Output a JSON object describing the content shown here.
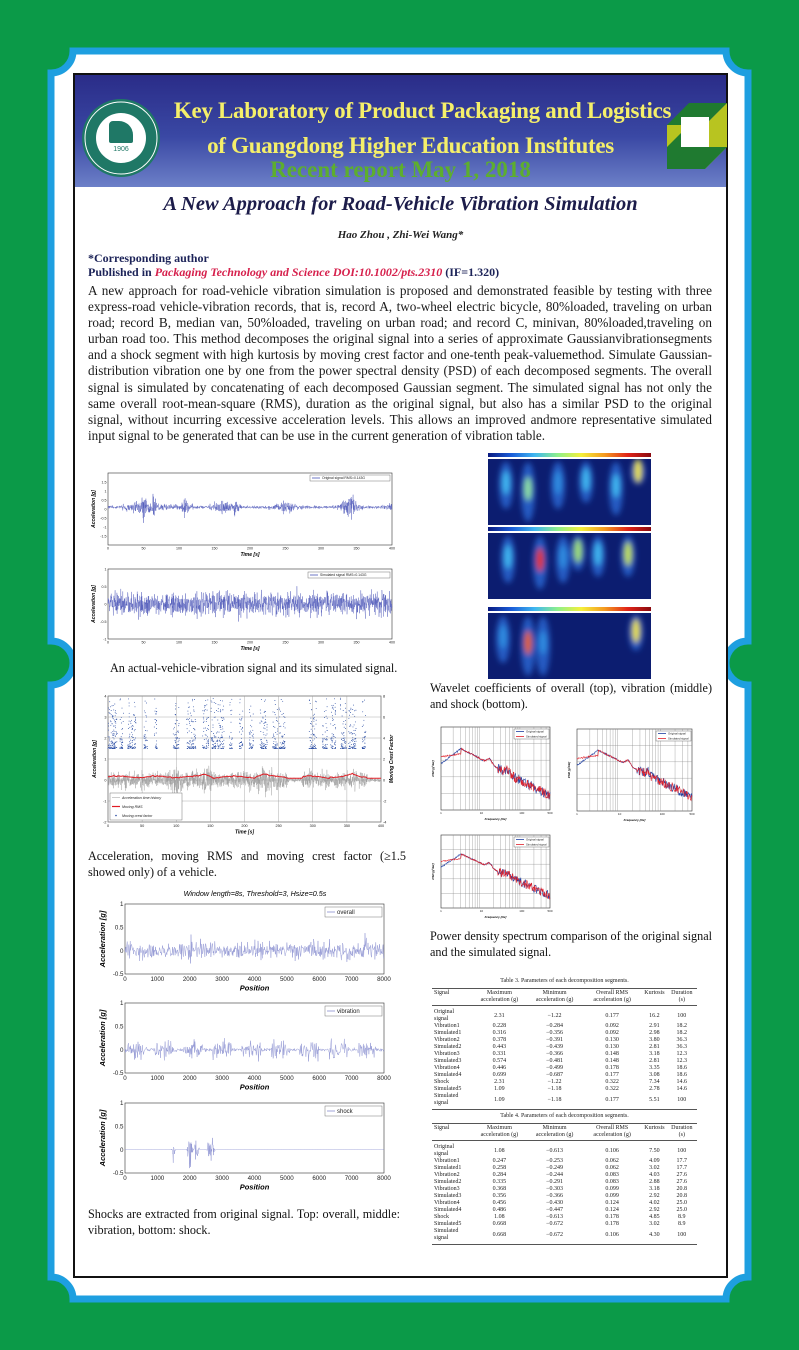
{
  "header": {
    "title_line1": "Key Laboratory of Product Packaging and Logistics",
    "title_line2": "of Guangdong Higher Education Institutes",
    "report_date": "Recent report May 1, 2018",
    "logo": {
      "year": "1906",
      "ring_text": "JINAN UNIVERSITY"
    },
    "colors": {
      "banner": "#2a2c88",
      "title": "#f5ef6a",
      "date": "#5dae2e",
      "background": "#0b9a48",
      "border": "#1e9fe0"
    }
  },
  "paper": {
    "title": "A New Approach for Road-Vehicle Vibration Simulation",
    "authors": "Hao Zhou , Zhi-Wei Wang*",
    "corresponding": "*Corresponding author",
    "published_prefix": "Published in ",
    "journal": "Packaging Technology and Science  DOI:10.1002/pts.2310",
    "impact_factor": " (IF=1.320)",
    "abstract": "A new approach for road-vehicle vibration simulation is proposed and demonstrated feasible by testing with three express-road vehicle-vibration records, that is, record A, two-wheel electric bicycle, 80%loaded, traveling on urban road; record B, median van, 50%loaded, traveling on urban road; and record C, minivan, 80%loaded,traveling on urban road too. This method decomposes the original signal into a series of approximate Gaussianvibrationsegments and a shock segment with high kurtosis by moving crest factor and one-tenth peak-valuemethod. Simulate Gaussian-distribution vibration one by one from the power spectral density (PSD) of each decomposed segments. The overall signal is simulated by concatenating of each decomposed Gaussian segment. The simulated signal has not only the same overall root-mean-square (RMS), duration as the original signal, but also has a similar PSD to the original signal, without incurring excessive acceleration levels. This allows an improved andmore representative simulated input signal to be generated that can be use in the current generation of vibration table."
  },
  "fig1": {
    "top_legend": "Original signal  RMS=0.143G",
    "bottom_legend": "Simulated signal RMS=0.143G",
    "ylabel": "Acceleration [g]",
    "xlabel": "Time [s]",
    "xticks": [
      "0",
      "50",
      "100",
      "150",
      "200",
      "250",
      "300",
      "350",
      "400"
    ],
    "top_yticks": [
      "-1.5",
      "-1",
      "-0.5",
      "0",
      "0.5",
      "1",
      "1.5"
    ],
    "bottom_yticks": [
      "-1",
      "-0.5",
      "0",
      "0.5",
      "1"
    ],
    "caption": "An actual-vehicle-vibration signal and its simulated signal."
  },
  "fig2": {
    "legend": [
      "Acceleration time history",
      "Moving RMS",
      "Moving crest factor"
    ],
    "ylabel": "Acceleration [g]",
    "y2label": "Moving Crest Factor",
    "xlabel": "Time [s]",
    "xticks": [
      "0",
      "50",
      "100",
      "150",
      "200",
      "250",
      "300",
      "350",
      "400"
    ],
    "yticks": [
      "-2",
      "-1",
      "0",
      "1",
      "2",
      "3",
      "4"
    ],
    "y2ticks": [
      "-4",
      "-2",
      "0",
      "2",
      "4",
      "6",
      "8"
    ],
    "caption": "Acceleration, moving RMS and moving crest factor (≥1.5 showed only) of a vehicle."
  },
  "fig3": {
    "title": "Window length=8s, Threshold=3, Hsize=0.5s",
    "legends": [
      "overall",
      "vibration",
      "shock"
    ],
    "ylabel": "Acceleration [g]",
    "xlabel": "Position",
    "xticks": [
      "0",
      "1000",
      "2000",
      "3000",
      "4000",
      "5000",
      "6000",
      "7000",
      "8000"
    ],
    "yticks": [
      "-0.5",
      "0",
      "0.5",
      "1"
    ],
    "caption": "Shocks are extracted from original signal. Top: overall, middle: vibration, bottom: shock."
  },
  "wavelet": {
    "caption": "Wavelet coefficients of overall (top), vibration (middle) and shock (bottom)."
  },
  "psd": {
    "legend": [
      "Original signal",
      "Simulated signal"
    ],
    "xlabel": "Frequency [Hz]",
    "ylabel": "PSD [g²/Hz]",
    "xticks": [
      "1",
      "10",
      "100",
      "500"
    ],
    "caption": "Power density spectrum comparison of the original signal and the simulated signal."
  },
  "tables": [
    {
      "caption": "Table 3. Parameters of each decomposition segments.",
      "headers": [
        "Signal",
        "Maximum acceleration (g)",
        "Minimum acceleration (g)",
        "Overall RMS acceleration (g)",
        "Kurtosis",
        "Duration (s)"
      ],
      "rows": [
        [
          "Original signal",
          "2.31",
          "−1.22",
          "0.177",
          "16.2",
          "100"
        ],
        [
          "Vibration1",
          "0.228",
          "−0.284",
          "0.092",
          "2.91",
          "18.2"
        ],
        [
          "Simulated1",
          "0.316",
          "−0.356",
          "0.092",
          "2.98",
          "18.2"
        ],
        [
          "Vibration2",
          "0.378",
          "−0.391",
          "0.130",
          "3.80",
          "36.3"
        ],
        [
          "Simulated2",
          "0.443",
          "−0.439",
          "0.130",
          "2.81",
          "36.3"
        ],
        [
          "Vibration3",
          "0.331",
          "−0.366",
          "0.148",
          "3.18",
          "12.3"
        ],
        [
          "Simulated3",
          "0.574",
          "−0.481",
          "0.148",
          "2.81",
          "12.3"
        ],
        [
          "Vibration4",
          "0.446",
          "−0.499",
          "0.178",
          "3.35",
          "18.6"
        ],
        [
          "Simulated4",
          "0.699",
          "−0.687",
          "0.177",
          "3.08",
          "18.6"
        ],
        [
          "Shock",
          "2.31",
          "−1.22",
          "0.322",
          "7.34",
          "14.6"
        ],
        [
          "Simulated5",
          "1.09",
          "−1.18",
          "0.322",
          "2.78",
          "14.6"
        ],
        [
          "Simulated signal",
          "1.09",
          "−1.18",
          "0.177",
          "5.51",
          "100"
        ]
      ]
    },
    {
      "caption": "Table 4. Parameters of each decomposition segments.",
      "headers": [
        "Signal",
        "Maximum acceleration (g)",
        "Minimum acceleration (g)",
        "Overall RMS acceleration (g)",
        "Kurtosis",
        "Duration (s)"
      ],
      "rows": [
        [
          "Original signal",
          "1.08",
          "−0.613",
          "0.106",
          "7.50",
          "100"
        ],
        [
          "Vibration1",
          "0.247",
          "−0.253",
          "0.062",
          "4.09",
          "17.7"
        ],
        [
          "Simulated1",
          "0.258",
          "−0.249",
          "0.062",
          "3.02",
          "17.7"
        ],
        [
          "Vibration2",
          "0.284",
          "−0.244",
          "0.083",
          "4.03",
          "27.6"
        ],
        [
          "Simulated2",
          "0.335",
          "−0.291",
          "0.083",
          "2.88",
          "27.6"
        ],
        [
          "Vibration3",
          "0.368",
          "−0.303",
          "0.099",
          "3.18",
          "20.8"
        ],
        [
          "Simulated3",
          "0.356",
          "−0.366",
          "0.099",
          "2.92",
          "20.8"
        ],
        [
          "Vibration4",
          "0.456",
          "−0.430",
          "0.124",
          "4.02",
          "25.0"
        ],
        [
          "Simulated4",
          "0.486",
          "−0.447",
          "0.124",
          "2.92",
          "25.0"
        ],
        [
          "Shock",
          "1.08",
          "−0.613",
          "0.178",
          "4.85",
          "8.9"
        ],
        [
          "Simulated5",
          "0.668",
          "−0.672",
          "0.178",
          "3.02",
          "8.9"
        ],
        [
          "Simulated signal",
          "0.668",
          "−0.672",
          "0.106",
          "4.30",
          "100"
        ]
      ]
    }
  ]
}
